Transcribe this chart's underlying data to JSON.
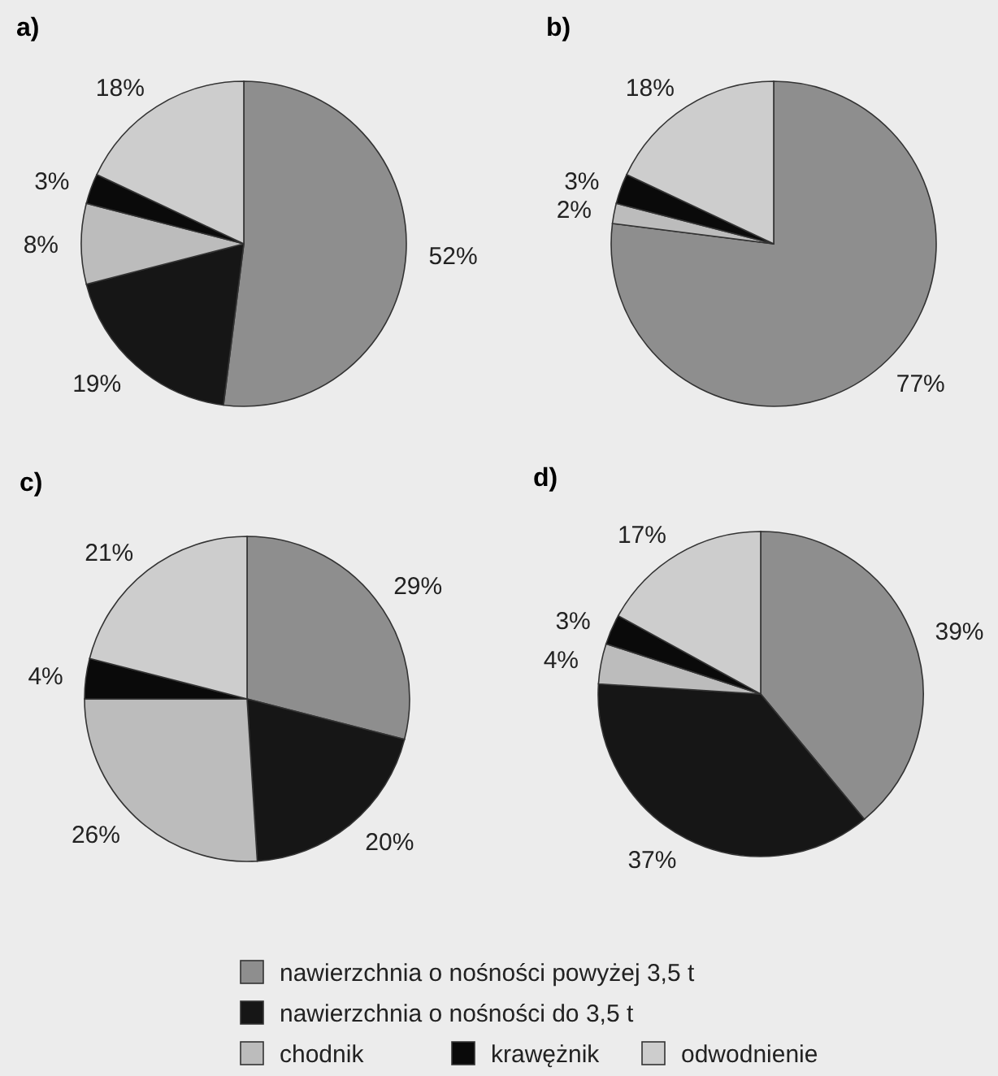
{
  "chart_data": [
    {
      "type": "pie",
      "title": "a)",
      "categories": [
        null,
        null,
        null,
        null,
        null
      ],
      "values": [
        52,
        19,
        8,
        3,
        18
      ],
      "colors": [
        "#8e8e8e",
        "#161616",
        "#bcbcbc",
        "#0a0a0a",
        "#cdcdcd"
      ],
      "value_labels": [
        "52%",
        "19%",
        "8%",
        "3%",
        "18%"
      ]
    },
    {
      "type": "pie",
      "title": "b)",
      "categories": [
        null,
        null,
        null,
        null
      ],
      "values": [
        77,
        2,
        3,
        18
      ],
      "colors": [
        "#8e8e8e",
        "#bcbcbc",
        "#0a0a0a",
        "#cdcdcd"
      ],
      "value_labels": [
        "77%",
        "2%",
        "3%",
        "18%"
      ]
    },
    {
      "type": "pie",
      "title": "c)",
      "categories": [
        null,
        null,
        null,
        null,
        null
      ],
      "values": [
        29,
        20,
        26,
        4,
        21
      ],
      "colors": [
        "#8e8e8e",
        "#161616",
        "#bcbcbc",
        "#0a0a0a",
        "#cdcdcd"
      ],
      "value_labels": [
        "29%",
        "20%",
        "26%",
        "4%",
        "21%"
      ]
    },
    {
      "type": "pie",
      "title": "d)",
      "categories": [
        "nawierzchnia o nośności powyżej 3,5 t",
        "nawierzchnia o nośności do 3,5 t",
        "chodnik",
        "krawężnik",
        "odwodnienie"
      ],
      "values": [
        39,
        37,
        4,
        3,
        17
      ],
      "colors": [
        "#8e8e8e",
        "#161616",
        "#bcbcbc",
        "#0a0a0a",
        "#cdcdcd"
      ],
      "value_labels": [
        "39%",
        "37%",
        "4%",
        "3%",
        "17%"
      ],
      "legend": "bottom"
    }
  ]
}
